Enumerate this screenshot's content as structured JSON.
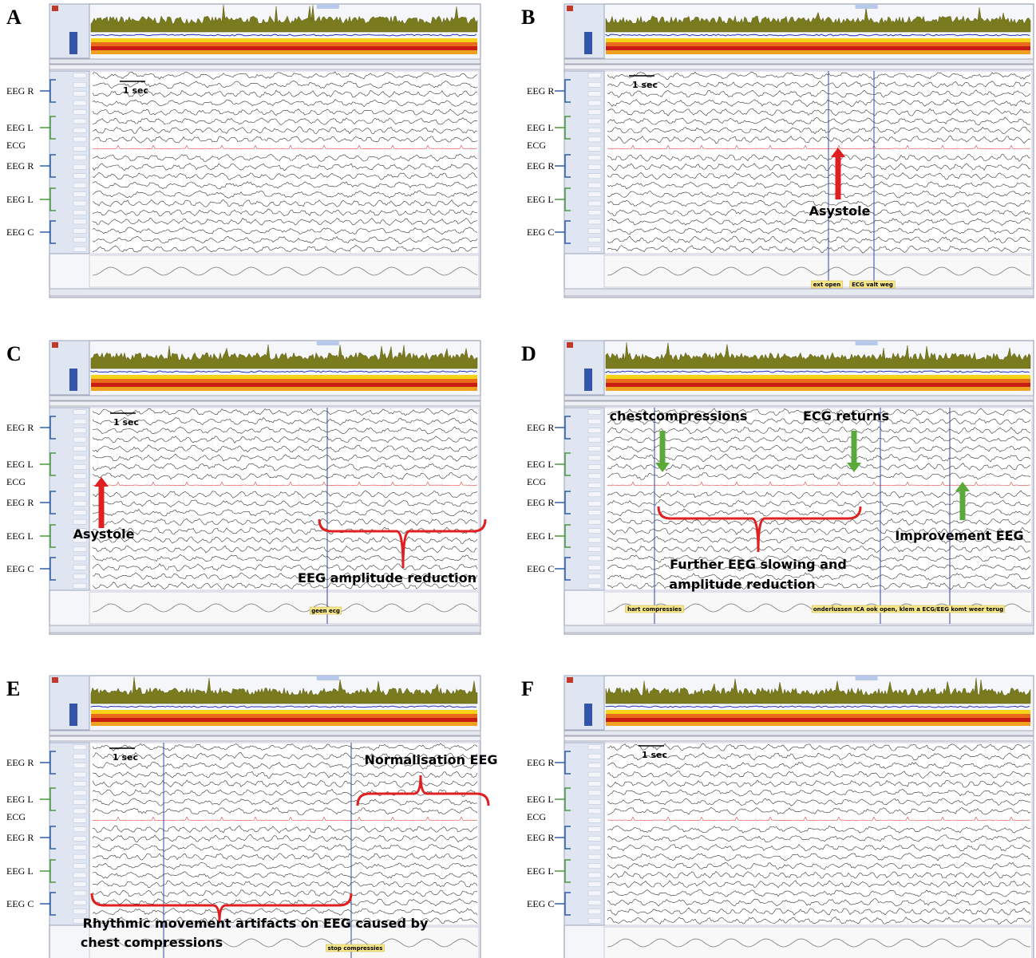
{
  "panels": [
    {
      "letter": "A",
      "side_labels": [
        "EEG R",
        "EEG L",
        "ECG",
        "EEG R",
        "EEG L",
        "EEG C"
      ],
      "scale_label": "1 sec",
      "annotations": [],
      "events": []
    },
    {
      "letter": "B",
      "side_labels": [
        "EEG R",
        "EEG L",
        "ECG",
        "EEG R",
        "EEG L",
        "EEG C"
      ],
      "scale_label": "1 sec",
      "annotations": [
        "Asystole"
      ],
      "events": [
        "ext open",
        "ECG valt weg"
      ]
    },
    {
      "letter": "C",
      "side_labels": [
        "EEG R",
        "EEG L",
        "ECG",
        "EEG R",
        "EEG L",
        "EEG C"
      ],
      "scale_label": "1 sec",
      "annotations": [
        "Asystole",
        "EEG amplitude reduction"
      ],
      "events": [
        "geen ecg"
      ]
    },
    {
      "letter": "D",
      "side_labels": [
        "EEG R",
        "EEG L",
        "ECG",
        "EEG R",
        "EEG L",
        "EEG C"
      ],
      "annotations": [
        "chestcompressions",
        "ECG returns",
        "Further EEG slowing and",
        "amplitude reduction",
        "Improvement EEG"
      ],
      "events": [
        "hart compressies",
        "onderlussen ICA ook open, klem a ECG/EEG komt weer terug"
      ]
    },
    {
      "letter": "E",
      "side_labels": [
        "EEG R",
        "EEG L",
        "ECG",
        "EEG R",
        "EEG L",
        "EEG C"
      ],
      "scale_label": "1 sec",
      "annotations": [
        "Normalisation EEG",
        "Rhythmic movement artifacts on EEG caused by",
        "chest compressions"
      ],
      "events": [
        "stop compressies"
      ]
    },
    {
      "letter": "F",
      "side_labels": [
        "EEG R",
        "EEG L",
        "ECG",
        "EEG R",
        "EEG L",
        "EEG C"
      ],
      "scale_label": "1 sec",
      "annotations": [],
      "events": []
    }
  ]
}
